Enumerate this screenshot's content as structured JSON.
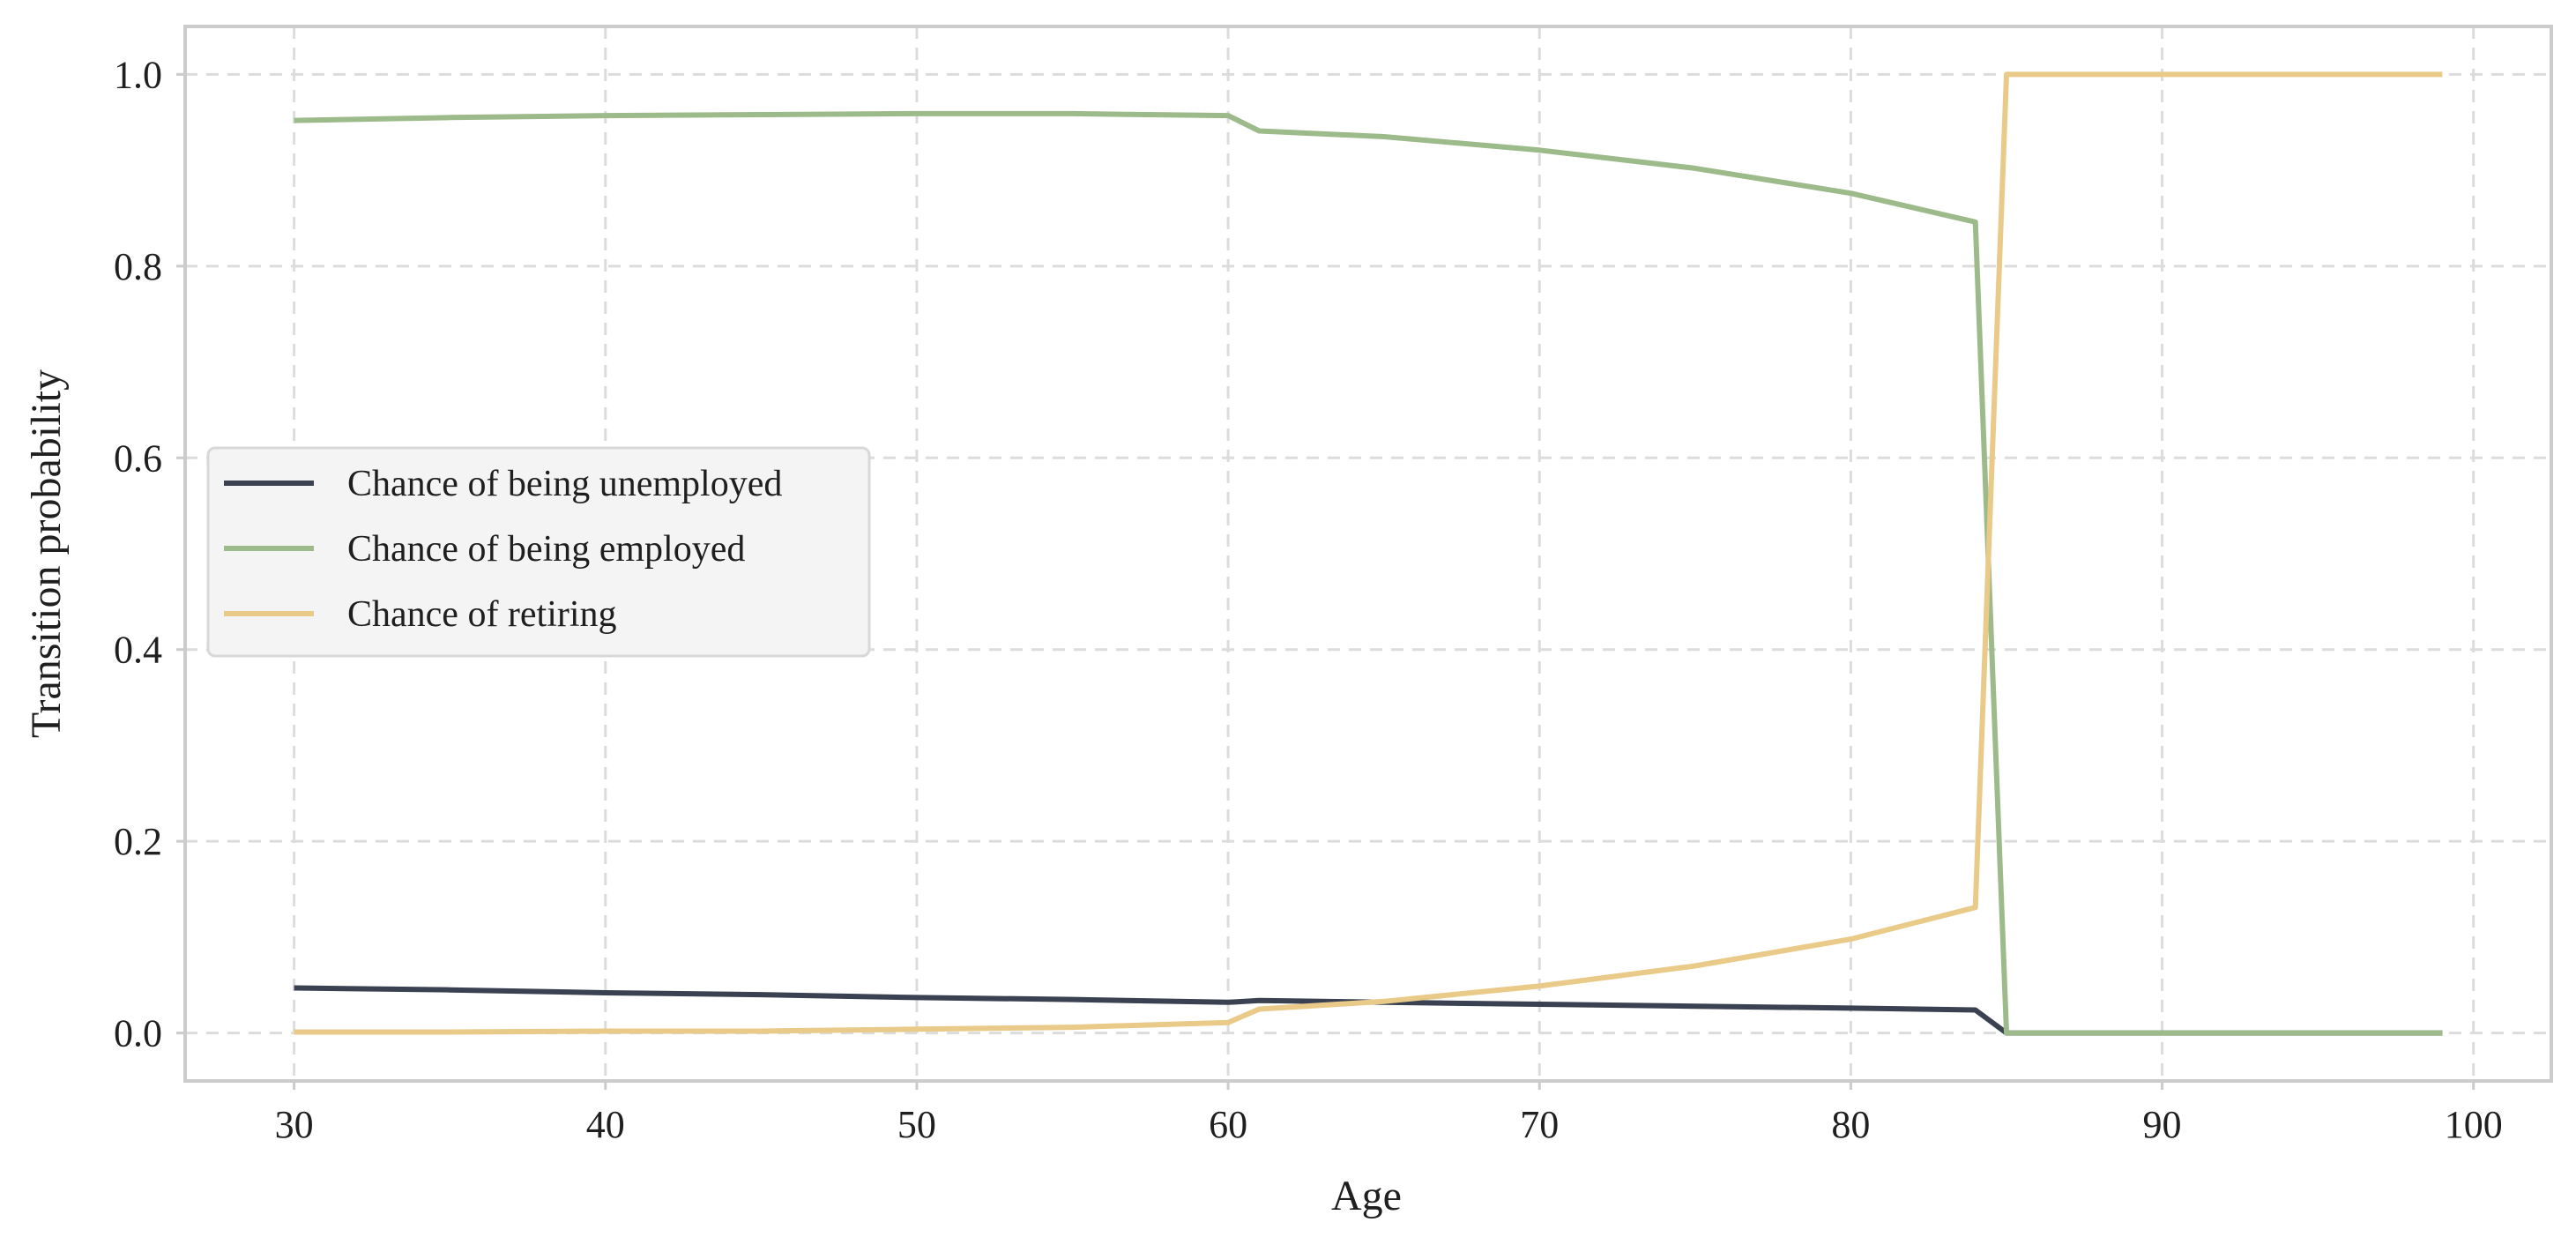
{
  "chart_data": {
    "type": "line",
    "xlabel": "Age",
    "ylabel": "Transition probability",
    "xlim": [
      26.5,
      102.5
    ],
    "ylim": [
      -0.05,
      1.05
    ],
    "xticks": [
      30,
      40,
      50,
      60,
      70,
      80,
      90,
      100
    ],
    "yticks": [
      0.0,
      0.2,
      0.4,
      0.6,
      0.8,
      1.0
    ],
    "xtick_labels": [
      "30",
      "40",
      "50",
      "60",
      "70",
      "80",
      "90",
      "100"
    ],
    "ytick_labels": [
      "0.0",
      "0.2",
      "0.4",
      "0.6",
      "0.8",
      "1.0"
    ],
    "grid": true,
    "legend_position": "center-left",
    "series": [
      {
        "name": "Chance of being unemployed",
        "color": "#3a4150",
        "points": [
          [
            30,
            0.047
          ],
          [
            35,
            0.045
          ],
          [
            40,
            0.042
          ],
          [
            45,
            0.04
          ],
          [
            50,
            0.037
          ],
          [
            55,
            0.035
          ],
          [
            60,
            0.032
          ],
          [
            61,
            0.034
          ],
          [
            65,
            0.032
          ],
          [
            70,
            0.03
          ],
          [
            75,
            0.028
          ],
          [
            80,
            0.026
          ],
          [
            84,
            0.024
          ],
          [
            85,
            0.0
          ],
          [
            90,
            0.0
          ],
          [
            95,
            0.0
          ],
          [
            99,
            0.0
          ]
        ]
      },
      {
        "name": "Chance of being employed",
        "color": "#9dbb8a",
        "points": [
          [
            30,
            0.952
          ],
          [
            35,
            0.955
          ],
          [
            40,
            0.957
          ],
          [
            45,
            0.958
          ],
          [
            50,
            0.959
          ],
          [
            55,
            0.959
          ],
          [
            60,
            0.957
          ],
          [
            61,
            0.941
          ],
          [
            65,
            0.935
          ],
          [
            70,
            0.921
          ],
          [
            75,
            0.902
          ],
          [
            80,
            0.876
          ],
          [
            84,
            0.846
          ],
          [
            85,
            0.0
          ],
          [
            90,
            0.0
          ],
          [
            95,
            0.0
          ],
          [
            99,
            0.0
          ]
        ]
      },
      {
        "name": "Chance of retiring",
        "color": "#e9ca88",
        "points": [
          [
            30,
            0.001
          ],
          [
            35,
            0.001
          ],
          [
            40,
            0.002
          ],
          [
            45,
            0.002
          ],
          [
            50,
            0.004
          ],
          [
            55,
            0.006
          ],
          [
            60,
            0.011
          ],
          [
            61,
            0.025
          ],
          [
            65,
            0.033
          ],
          [
            70,
            0.049
          ],
          [
            75,
            0.07
          ],
          [
            80,
            0.098
          ],
          [
            84,
            0.131
          ],
          [
            85,
            1.0
          ],
          [
            90,
            1.0
          ],
          [
            95,
            1.0
          ],
          [
            99,
            1.0
          ]
        ]
      }
    ]
  }
}
